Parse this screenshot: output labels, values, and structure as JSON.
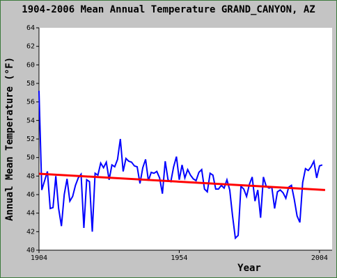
{
  "chart_data": {
    "type": "line",
    "title": "1904-2006 Mean Annual Temperature GRAND_CANYON, AZ",
    "x_label": "Year",
    "y_label": "Annual Mean Temperature (°F)",
    "xlim": [
      1904,
      2008.5
    ],
    "xticks": [
      1904,
      1954,
      2004
    ],
    "ylim": [
      40,
      64
    ],
    "yticks": [
      40,
      42,
      44,
      46,
      48,
      50,
      52,
      54,
      56,
      58,
      60,
      62,
      64
    ],
    "grid": false,
    "series": [
      {
        "color": "#0000ff",
        "x": [
          1904,
          1905,
          1906,
          1907,
          1908,
          1909,
          1910,
          1911,
          1912,
          1913,
          1914,
          1915,
          1916,
          1917,
          1918,
          1919,
          1920,
          1921,
          1922,
          1923,
          1924,
          1925,
          1926,
          1927,
          1928,
          1929,
          1930,
          1931,
          1932,
          1933,
          1934,
          1935,
          1936,
          1937,
          1938,
          1939,
          1940,
          1941,
          1942,
          1943,
          1944,
          1945,
          1946,
          1947,
          1948,
          1949,
          1950,
          1951,
          1952,
          1953,
          1954,
          1955,
          1956,
          1957,
          1958,
          1959,
          1960,
          1961,
          1962,
          1963,
          1964,
          1965,
          1966,
          1967,
          1968,
          1969,
          1970,
          1971,
          1972,
          1973,
          1974,
          1975,
          1976,
          1977,
          1978,
          1979,
          1980,
          1981,
          1982,
          1983,
          1984,
          1985,
          1986,
          1987,
          1988,
          1989,
          1990,
          1991,
          1992,
          1993,
          1994,
          1995,
          1996,
          1997,
          1998,
          1999,
          2000,
          2001,
          2002,
          2003,
          2004,
          2005
        ],
        "values": [
          57.2,
          46.5,
          47.5,
          48.5,
          44.5,
          44.6,
          48.0,
          44.5,
          42.6,
          46.0,
          47.7,
          45.3,
          45.8,
          47.0,
          47.8,
          48.2,
          42.4,
          47.6,
          47.4,
          42.0,
          48.3,
          48.1,
          49.4,
          48.9,
          49.5,
          47.6,
          49.2,
          49.0,
          49.8,
          52.0,
          48.5,
          49.9,
          49.6,
          49.5,
          49.1,
          49.0,
          47.2,
          48.9,
          49.8,
          47.5,
          48.4,
          48.3,
          48.5,
          47.8,
          46.1,
          49.6,
          47.6,
          47.4,
          49.0,
          50.1,
          47.6,
          49.2,
          47.8,
          48.7,
          48.1,
          47.7,
          47.5,
          48.4,
          48.7,
          46.6,
          46.3,
          48.3,
          48.1,
          46.6,
          46.6,
          47.0,
          46.7,
          47.6,
          46.5,
          43.7,
          41.3,
          41.6,
          46.9,
          46.6,
          45.8,
          47.1,
          47.9,
          45.3,
          46.5,
          43.5,
          47.9,
          46.9,
          46.7,
          46.8,
          44.5,
          46.3,
          46.5,
          46.2,
          45.6,
          46.8,
          47.0,
          45.5,
          43.7,
          43.0,
          47.3,
          48.8,
          48.6,
          49.0,
          49.6,
          47.8,
          49.1,
          49.2
        ]
      },
      {
        "color": "#ff0000",
        "x": [
          1904,
          2006
        ],
        "values": [
          48.25,
          46.5
        ]
      }
    ]
  }
}
